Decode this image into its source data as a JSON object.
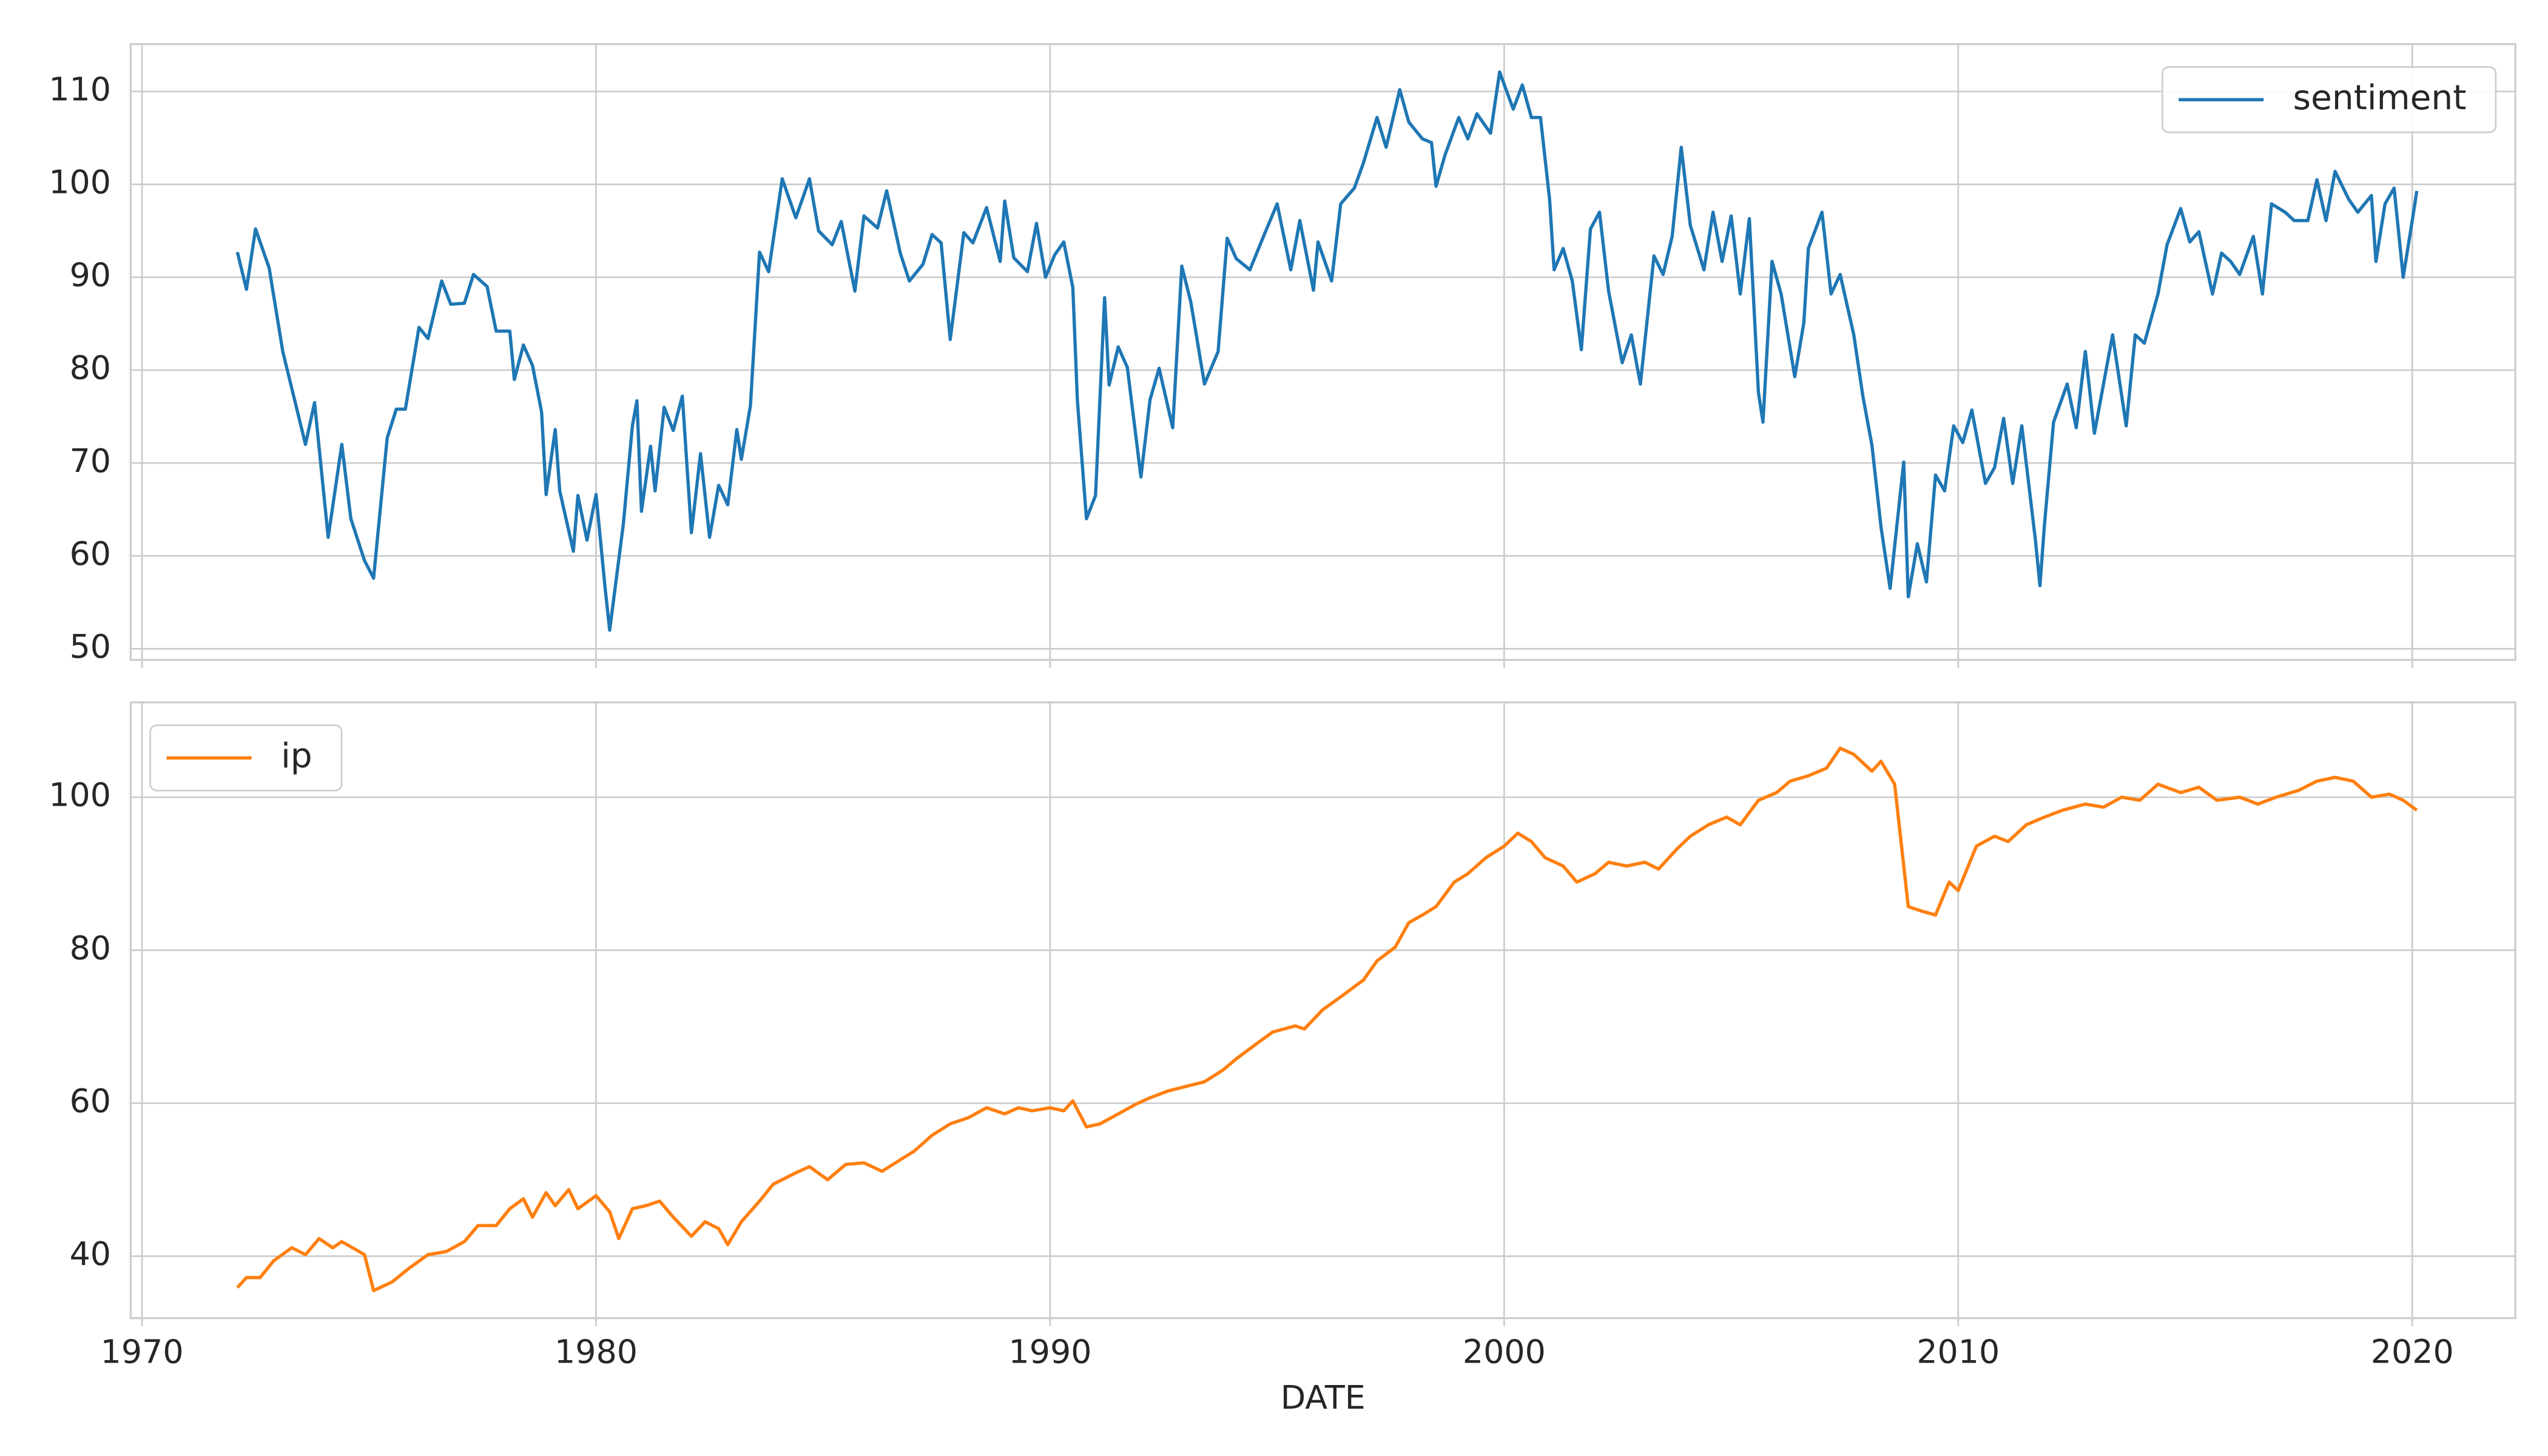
{
  "chart_data": [
    {
      "type": "line",
      "legend": "upper right",
      "grid": true,
      "xlim": [
        1969.75,
        2022.27
      ],
      "xticks": [
        1970,
        1980,
        1990,
        2000,
        2010,
        2020
      ],
      "ylim": [
        48.8,
        115.1
      ],
      "yticks": [
        50,
        60,
        70,
        80,
        90,
        100,
        110
      ],
      "x": [
        1972.1,
        1972.3,
        1972.5,
        1972.8,
        1973.1,
        1973.6,
        1973.8,
        1974.1,
        1974.4,
        1974.6,
        1974.9,
        1975.1,
        1975.4,
        1975.6,
        1975.8,
        1976.1,
        1976.3,
        1976.6,
        1976.8,
        1977.1,
        1977.3,
        1977.6,
        1977.8,
        1978.1,
        1978.2,
        1978.4,
        1978.6,
        1978.8,
        1978.9,
        1979.1,
        1979.2,
        1979.5,
        1979.6,
        1979.8,
        1980.0,
        1980.2,
        1980.3,
        1980.6,
        1980.8,
        1980.9,
        1981.0,
        1981.2,
        1981.3,
        1981.5,
        1981.7,
        1981.9,
        1982.1,
        1982.3,
        1982.5,
        1982.7,
        1982.9,
        1983.1,
        1983.2,
        1983.4,
        1983.6,
        1983.8,
        1984.1,
        1984.4,
        1984.7,
        1984.9,
        1985.2,
        1985.4,
        1985.7,
        1985.9,
        1986.2,
        1986.4,
        1986.7,
        1986.9,
        1987.2,
        1987.4,
        1987.6,
        1987.8,
        1988.1,
        1988.3,
        1988.6,
        1988.9,
        1989.0,
        1989.2,
        1989.5,
        1989.7,
        1989.9,
        1990.1,
        1990.3,
        1990.5,
        1990.6,
        1990.8,
        1991.0,
        1991.2,
        1991.3,
        1991.5,
        1991.7,
        1992.0,
        1992.2,
        1992.4,
        1992.7,
        1992.9,
        1993.1,
        1993.4,
        1993.7,
        1993.9,
        1994.1,
        1994.4,
        1994.7,
        1995.0,
        1995.3,
        1995.5,
        1995.8,
        1995.9,
        1996.2,
        1996.4,
        1996.7,
        1996.9,
        1997.2,
        1997.4,
        1997.7,
        1997.9,
        1998.2,
        1998.4,
        1998.5,
        1998.7,
        1999.0,
        1999.2,
        1999.4,
        1999.7,
        1999.9,
        2000.2,
        2000.4,
        2000.6,
        2000.8,
        2001.0,
        2001.1,
        2001.3,
        2001.5,
        2001.7,
        2001.9,
        2002.1,
        2002.3,
        2002.6,
        2002.8,
        2003.0,
        2003.3,
        2003.5,
        2003.7,
        2003.9,
        2004.1,
        2004.4,
        2004.6,
        2004.8,
        2005.0,
        2005.2,
        2005.4,
        2005.6,
        2005.7,
        2005.9,
        2006.1,
        2006.4,
        2006.6,
        2006.7,
        2007.0,
        2007.2,
        2007.4,
        2007.7,
        2007.9,
        2008.1,
        2008.3,
        2008.5,
        2008.8,
        2008.9,
        2009.1,
        2009.3,
        2009.5,
        2009.7,
        2009.9,
        2010.1,
        2010.3,
        2010.6,
        2010.8,
        2011.0,
        2011.2,
        2011.4,
        2011.7,
        2011.8,
        2011.9,
        2012.1,
        2012.4,
        2012.6,
        2012.8,
        2013.0,
        2013.2,
        2013.4,
        2013.7,
        2013.9,
        2014.1,
        2014.4,
        2014.6,
        2014.9,
        2015.1,
        2015.3,
        2015.6,
        2015.8,
        2016.0,
        2016.2,
        2016.5,
        2016.7,
        2016.9,
        2017.2,
        2017.4,
        2017.7,
        2017.9,
        2018.1,
        2018.3,
        2018.6,
        2018.8,
        2019.1,
        2019.2,
        2019.4,
        2019.6,
        2019.8,
        2020.0,
        2020.1
      ],
      "series": [
        {
          "name": "sentiment",
          "color": "#1f77b4",
          "values": [
            92.7,
            88.7,
            95.2,
            91,
            82,
            72,
            76.5,
            62,
            72,
            64,
            59.5,
            57.6,
            72.7,
            75.8,
            75.8,
            84.6,
            83.4,
            89.6,
            87.1,
            87.2,
            90.3,
            89,
            84.2,
            84.2,
            79,
            82.7,
            80.5,
            75.5,
            66.6,
            73.6,
            67,
            60.5,
            66.5,
            61.7,
            66.6,
            56.5,
            52,
            63.4,
            74,
            76.7,
            64.8,
            71.8,
            67,
            76,
            73.5,
            77.2,
            62.5,
            71,
            62,
            67.6,
            65.5,
            73.6,
            70.4,
            76.2,
            92.7,
            90.6,
            100.6,
            96.4,
            100.6,
            95,
            93.5,
            96,
            88.5,
            96.6,
            95.3,
            99.3,
            92.6,
            89.6,
            91.4,
            94.6,
            93.7,
            83.3,
            94.8,
            93.7,
            97.5,
            91.7,
            98.2,
            92.1,
            90.6,
            95.8,
            90,
            92.4,
            93.8,
            88.9,
            76.8,
            64,
            66.5,
            87.8,
            78.4,
            82.5,
            80.3,
            68.5,
            76.8,
            80.2,
            73.8,
            91.2,
            87.3,
            78.5,
            82,
            94.2,
            92,
            90.8,
            94.4,
            97.9,
            90.8,
            96.1,
            88.6,
            93.8,
            89.6,
            97.9,
            99.6,
            102.3,
            107.2,
            104,
            110.2,
            106.7,
            104.9,
            104.5,
            99.8,
            103.2,
            107.2,
            104.9,
            107.6,
            105.5,
            112.1,
            108.1,
            110.7,
            107.2,
            107.2,
            98.4,
            90.8,
            93.1,
            89.6,
            82.2,
            95.2,
            97,
            88.5,
            80.8,
            83.8,
            78.5,
            92.3,
            90.3,
            94.4,
            104,
            95.6,
            90.8,
            97,
            91.7,
            96.6,
            88.2,
            96.3,
            77.6,
            74.4,
            91.7,
            88.2,
            79.3,
            85.1,
            93.1,
            97,
            88.2,
            90.3,
            83.8,
            77.2,
            71.9,
            63.1,
            56.5,
            70.1,
            55.6,
            61.3,
            57.2,
            68.7,
            67,
            74,
            72.2,
            75.7,
            67.8,
            69.5,
            74.8,
            67.8,
            74,
            61.7,
            56.8,
            63.4,
            74.4,
            78.5,
            73.8,
            82,
            73.2,
            78.5,
            83.8,
            74,
            83.8,
            82.9,
            88.2,
            93.5,
            97.4,
            93.8,
            94.9,
            88.2,
            92.6,
            91.7,
            90.3,
            94.4,
            88.2,
            97.9,
            97,
            96.1,
            96.1,
            100.5,
            96.1,
            101.4,
            98.4,
            97,
            98.8,
            91.7,
            97.9,
            99.6,
            90,
            96.1,
            99.3
          ]
        }
      ]
    },
    {
      "type": "line",
      "legend": "upper left",
      "grid": true,
      "xlabel": "DATE",
      "xlim": [
        1969.75,
        2022.27
      ],
      "xticks": [
        1970,
        1980,
        1990,
        2000,
        2010,
        2020
      ],
      "ylim": [
        31.9,
        112.4
      ],
      "yticks": [
        40,
        60,
        80,
        100
      ],
      "x": [
        1972.1,
        1972.3,
        1972.6,
        1972.9,
        1973.3,
        1973.6,
        1973.9,
        1974.2,
        1974.4,
        1974.9,
        1975.1,
        1975.5,
        1975.9,
        1976.3,
        1976.7,
        1977.1,
        1977.4,
        1977.8,
        1978.1,
        1978.4,
        1978.6,
        1978.9,
        1979.1,
        1979.4,
        1979.6,
        1980.0,
        1980.3,
        1980.5,
        1980.8,
        1981.1,
        1981.4,
        1981.7,
        1982.1,
        1982.4,
        1982.7,
        1982.9,
        1983.2,
        1983.6,
        1983.9,
        1984.4,
        1984.7,
        1985.1,
        1985.5,
        1985.9,
        1986.3,
        1986.7,
        1987.0,
        1987.4,
        1987.8,
        1988.2,
        1988.6,
        1989.0,
        1989.3,
        1989.6,
        1990.0,
        1990.3,
        1990.5,
        1990.8,
        1991.1,
        1991.5,
        1991.9,
        1992.2,
        1992.6,
        1993.0,
        1993.4,
        1993.8,
        1994.1,
        1994.6,
        1994.9,
        1995.4,
        1995.6,
        1996.0,
        1996.4,
        1996.9,
        1997.2,
        1997.6,
        1997.9,
        1998.2,
        1998.5,
        1998.9,
        1999.2,
        1999.6,
        2000.0,
        2000.3,
        2000.6,
        2000.9,
        2001.3,
        2001.6,
        2002.0,
        2002.3,
        2002.7,
        2003.1,
        2003.4,
        2003.8,
        2004.1,
        2004.5,
        2004.9,
        2005.2,
        2005.6,
        2006.0,
        2006.3,
        2006.7,
        2007.1,
        2007.4,
        2007.7,
        2008.1,
        2008.3,
        2008.6,
        2008.9,
        2009.2,
        2009.5,
        2009.8,
        2010.0,
        2010.4,
        2010.8,
        2011.1,
        2011.5,
        2011.9,
        2012.3,
        2012.8,
        2013.2,
        2013.6,
        2014.0,
        2014.4,
        2014.9,
        2015.3,
        2015.7,
        2016.2,
        2016.6,
        2017.0,
        2017.5,
        2017.9,
        2018.3,
        2018.7,
        2019.1,
        2019.5,
        2019.8,
        2020.1
      ],
      "series": [
        {
          "name": "ip",
          "color": "#ff7f0e",
          "values": [
            35.9,
            37.2,
            37.2,
            39.4,
            41.1,
            40.2,
            42.3,
            41.1,
            41.9,
            40.2,
            35.5,
            36.6,
            38.5,
            40.2,
            40.6,
            41.9,
            44,
            44,
            46.2,
            47.5,
            45.1,
            48.3,
            46.6,
            48.7,
            46.2,
            47.9,
            45.8,
            42.3,
            46.2,
            46.6,
            47.2,
            45.1,
            42.6,
            44.5,
            43.6,
            41.5,
            44.5,
            47.2,
            49.4,
            50.9,
            51.7,
            50,
            52,
            52.2,
            51.1,
            52.6,
            53.7,
            55.8,
            57.3,
            58.1,
            59.4,
            58.6,
            59.4,
            59,
            59.4,
            59,
            60.3,
            56.9,
            57.3,
            58.6,
            59.9,
            60.7,
            61.6,
            62.2,
            62.8,
            64.3,
            65.8,
            68,
            69.3,
            70.1,
            69.7,
            72.2,
            73.9,
            76.1,
            78.6,
            80.4,
            83.6,
            84.6,
            85.7,
            88.9,
            90,
            92.1,
            93.6,
            95.3,
            94.2,
            92.1,
            91,
            88.9,
            90,
            91.5,
            91,
            91.5,
            90.6,
            93.2,
            94.9,
            96.4,
            97.4,
            96.4,
            99.6,
            100.6,
            102.1,
            102.8,
            103.8,
            106.4,
            105.6,
            103.4,
            104.7,
            101.7,
            85.7,
            85.1,
            84.6,
            88.9,
            87.8,
            93.6,
            94.9,
            94.2,
            96.4,
            97.4,
            98.3,
            99.1,
            98.7,
            100,
            99.6,
            101.7,
            100.6,
            101.3,
            99.6,
            100,
            99.1,
            100,
            100.9,
            102.1,
            102.6,
            102.1,
            100,
            100.4,
            99.6,
            98.3
          ]
        }
      ]
    }
  ]
}
